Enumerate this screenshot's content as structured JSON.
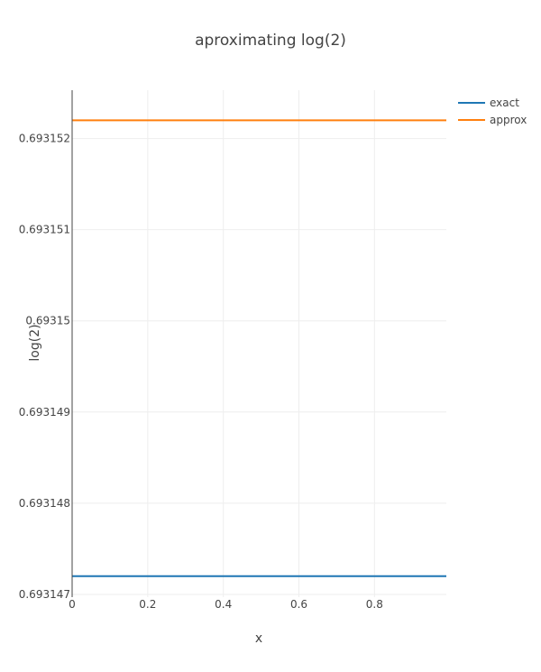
{
  "chart_data": {
    "type": "line",
    "title": "aproximating log(2)",
    "xlabel": "x",
    "ylabel": "log(2)",
    "xlim": [
      0,
      0.99
    ],
    "ylim": [
      0.69314697,
      0.69315253
    ],
    "x_ticks": [
      0,
      0.2,
      0.4,
      0.6,
      0.8
    ],
    "x_tick_labels": [
      "0",
      "0.2",
      "0.4",
      "0.6",
      "0.8"
    ],
    "y_ticks": [
      0.693147,
      0.693148,
      0.693149,
      0.69315,
      0.693151,
      0.693152
    ],
    "y_tick_labels": [
      "0.693147",
      "0.693148",
      "0.693149",
      "0.69315",
      "0.693151",
      "0.693152"
    ],
    "grid": true,
    "legend_position": "top-right",
    "series": [
      {
        "name": "exact",
        "color": "#1f77b4",
        "x": [
          0,
          0.99
        ],
        "y": [
          0.6931472,
          0.6931472
        ]
      },
      {
        "name": "approx",
        "color": "#ff7f0e",
        "x": [
          0,
          0.99
        ],
        "y": [
          0.6931522,
          0.6931522
        ]
      }
    ]
  }
}
